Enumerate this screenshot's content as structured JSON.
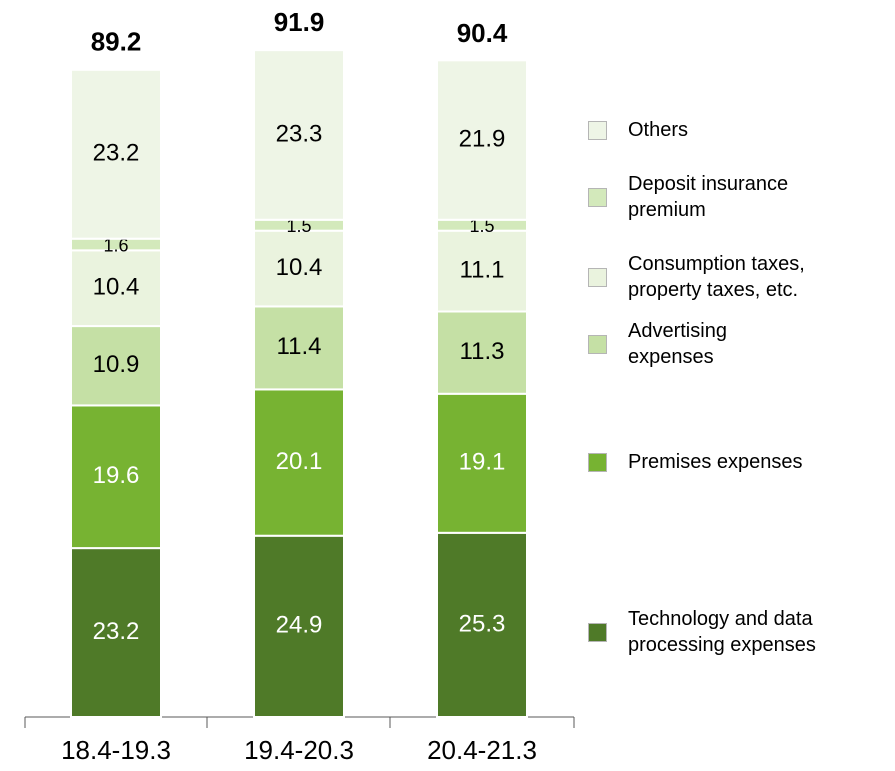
{
  "chart_data": {
    "type": "stacked_bar",
    "categories": [
      "18.4-19.3",
      "19.4-20.3",
      "20.4-21.3"
    ],
    "totals": [
      89.2,
      91.9,
      90.4
    ],
    "series": [
      {
        "name": "Technology and data\nprocessing expenses",
        "color": "#4f7a28",
        "values": [
          23.2,
          24.9,
          25.3
        ]
      },
      {
        "name": "Premises expenses",
        "color": "#77b332",
        "values": [
          19.6,
          20.1,
          19.1
        ]
      },
      {
        "name": "Advertising\nexpenses",
        "color": "#c5e0a5",
        "values": [
          10.9,
          11.4,
          11.3
        ]
      },
      {
        "name": "Consumption taxes,\nproperty taxes, etc.",
        "color": "#eaf3de",
        "values": [
          10.4,
          10.4,
          11.1
        ]
      },
      {
        "name": "Deposit insurance\npremium",
        "color": "#d3e9bb",
        "values": [
          1.6,
          1.5,
          1.5
        ]
      },
      {
        "name": "Others",
        "color": "#eef5e6",
        "values": [
          23.2,
          23.3,
          21.9
        ]
      }
    ],
    "legend": "right"
  }
}
